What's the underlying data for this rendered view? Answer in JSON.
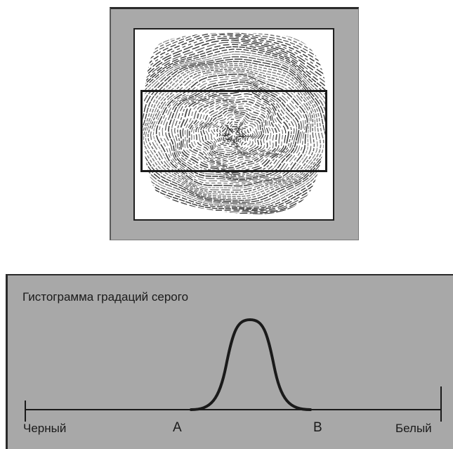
{
  "image": {
    "subject": "fingerprint-scan",
    "colors": {
      "outer_frame": "#a9a9a9",
      "canvas": "#ffffff",
      "ink": "#1a1a1a"
    }
  },
  "histogram": {
    "title": "Гистограмма градаций серого",
    "left_end_label": "Черный",
    "marker_a_label": "A",
    "marker_b_label": "B",
    "right_end_label": "Белый",
    "colors": {
      "panel": "#a8a8a8",
      "curve": "#1a1a1a"
    }
  }
}
